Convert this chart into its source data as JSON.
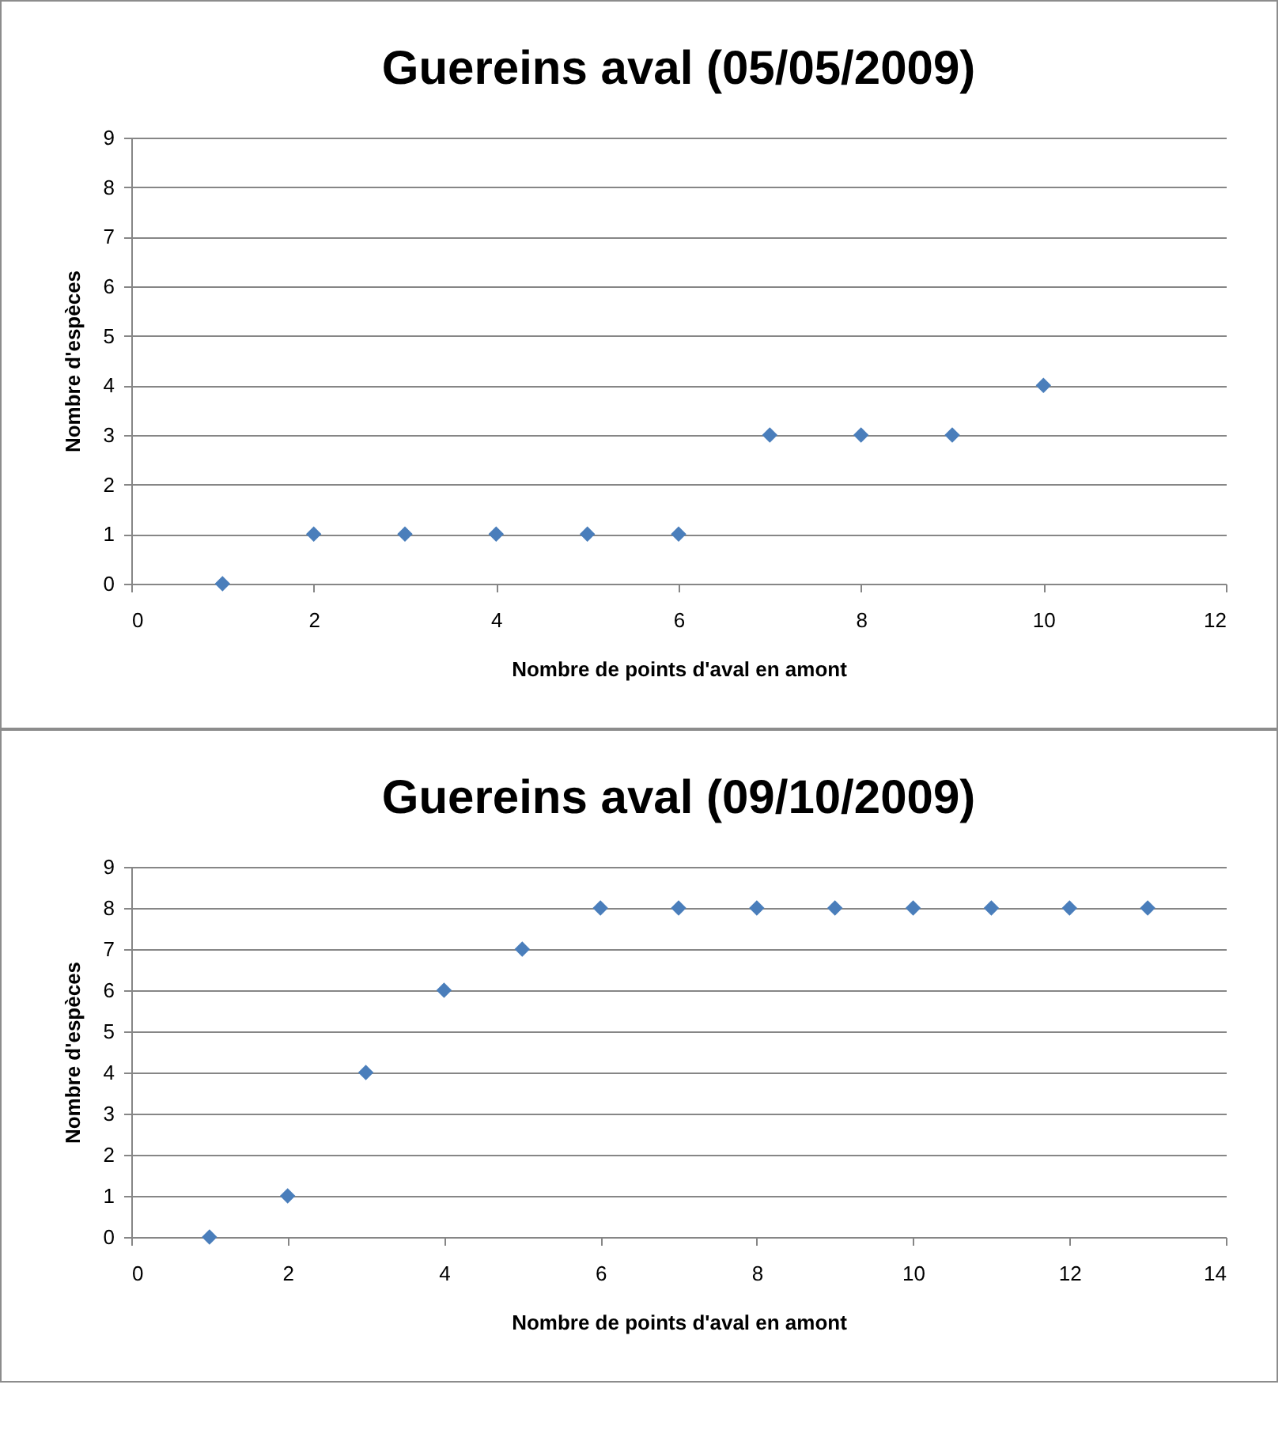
{
  "chart_data": [
    {
      "type": "scatter",
      "title": "Guereins aval (05/05/2009)",
      "xlabel": "Nombre de points d'aval  en amont",
      "ylabel": "Nombre d'espèces",
      "x": [
        1,
        2,
        3,
        4,
        5,
        6,
        7,
        8,
        9,
        10
      ],
      "series": [
        {
          "color": "#4a7ebb",
          "values": [
            0,
            1,
            1,
            1,
            1,
            1,
            3,
            3,
            3,
            4
          ]
        }
      ],
      "xlim": [
        0,
        12
      ],
      "xticks": [
        0,
        2,
        4,
        6,
        8,
        10,
        12
      ],
      "ylim": [
        0,
        9
      ],
      "yticks": [
        0,
        1,
        2,
        3,
        4,
        5,
        6,
        7,
        8,
        9
      ],
      "grid": "y",
      "marker": "diamond",
      "legend": false
    },
    {
      "type": "scatter",
      "title": "Guereins aval (09/10/2009)",
      "xlabel": "Nombre de points d'aval  en amont",
      "ylabel": "Nombre d'espèces",
      "x": [
        1,
        2,
        3,
        4,
        5,
        6,
        7,
        8,
        9,
        10,
        11,
        12,
        13
      ],
      "series": [
        {
          "color": "#4a7ebb",
          "values": [
            0,
            1,
            4,
            6,
            7,
            8,
            8,
            8,
            8,
            8,
            8,
            8,
            8
          ]
        }
      ],
      "xlim": [
        0,
        14
      ],
      "xticks": [
        0,
        2,
        4,
        6,
        8,
        10,
        12,
        14
      ],
      "ylim": [
        0,
        9
      ],
      "yticks": [
        0,
        1,
        2,
        3,
        4,
        5,
        6,
        7,
        8,
        9
      ],
      "grid": "y",
      "marker": "diamond",
      "legend": false
    }
  ]
}
